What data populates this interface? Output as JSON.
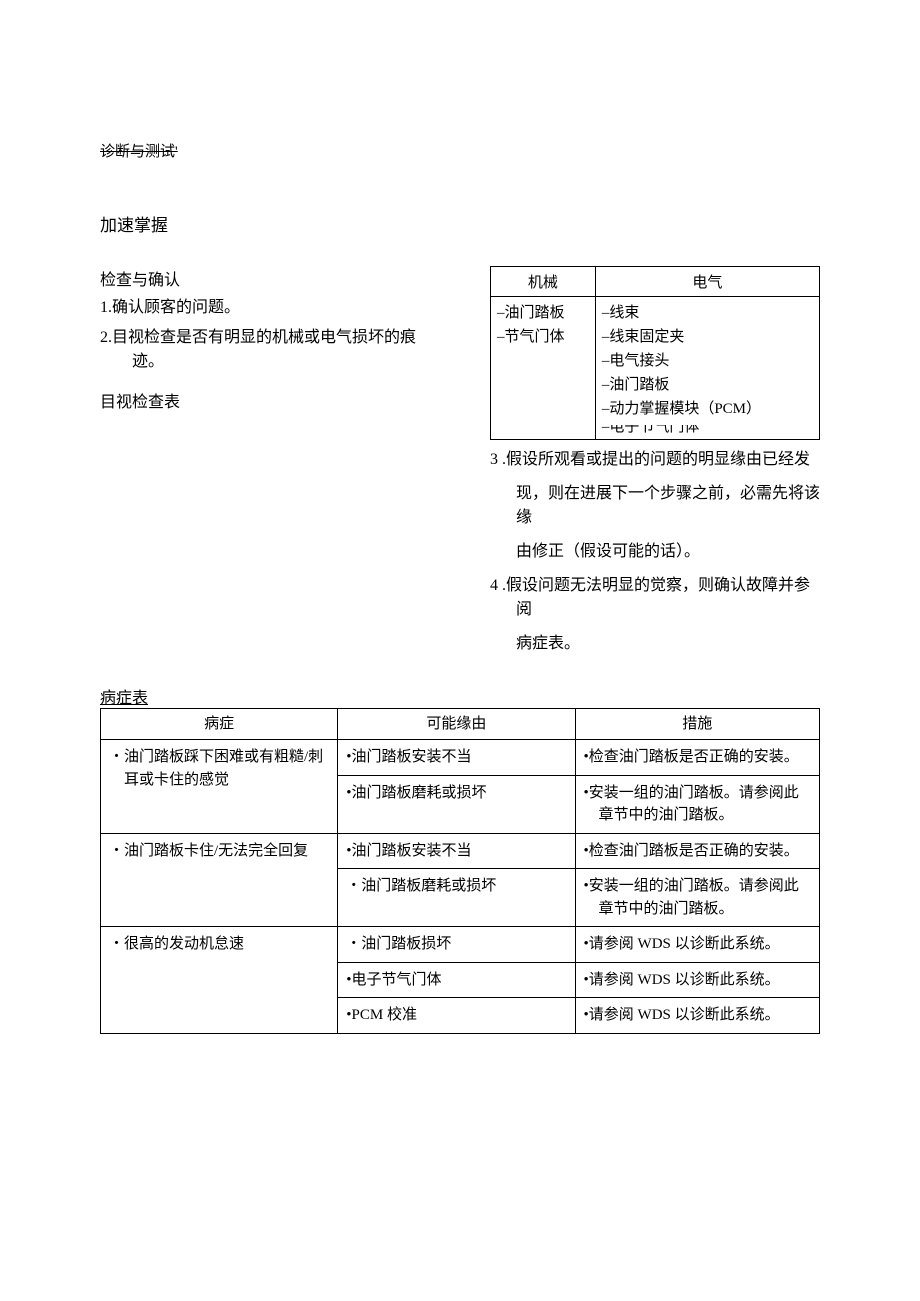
{
  "header": {
    "struck_text": "诊断与测试'"
  },
  "title": "加速掌握",
  "inspection": {
    "heading": "检查与确认",
    "item1": "1.确认顾客的问题。",
    "item2_line1": "2.目视检查是否有明显的机械或电气损坏的痕",
    "item2_line2": "迹。",
    "visual_label": "目视检查表"
  },
  "visual_table": {
    "col1_header": "机械",
    "col2_header": "电气",
    "col1_items": {
      "i1": "油门踏板",
      "i2": "节气门体"
    },
    "col2_items": {
      "i1": "线束",
      "i2": "线束固定夹",
      "i3": "电气接头",
      "i4": "油门踏板",
      "i5": "动力掌握模块（PCM）",
      "i6": "电子节气门体"
    }
  },
  "steps": {
    "s3_line1": "3 .假设所观看或提出的问题的明显缘由已经发",
    "s3_line2": "现，则在进展下一个步骤之前，必需先将该缘",
    "s3_line3": "由修正（假设可能的话）。",
    "s4_line1": "4 .假设问题无法明显的觉察，则确认故障并参阅",
    "s4_line2": "病症表。"
  },
  "symptom_table": {
    "label": "病症表",
    "headers": {
      "symptom": "病症",
      "cause": "可能缘由",
      "action": "措施"
    },
    "rows": {
      "r1": {
        "symptom_l1": "・油门踏板踩下困难或有粗糙/刺",
        "symptom_l2": "　耳或卡住的感觉",
        "cause": "•油门踏板安装不当",
        "action": "•检查油门踏板是否正确的安装。"
      },
      "r2": {
        "cause": "•油门踏板磨耗或损坏",
        "action_l1": "•安装一组的油门踏板。请参阅此",
        "action_l2": "　章节中的油门踏板。"
      },
      "r3": {
        "symptom": "・油门踏板卡住/无法完全回复",
        "cause": "•油门踏板安装不当",
        "action": "•检查油门踏板是否正确的安装。"
      },
      "r4": {
        "cause": "・油门踏板磨耗或损坏",
        "action_l1": "•安装一组的油门踏板。请参阅此",
        "action_l2": "　章节中的油门踏板。"
      },
      "r5": {
        "symptom": "・很高的发动机怠速",
        "cause": "・油门踏板损坏",
        "action": "•请参阅 WDS 以诊断此系统。"
      },
      "r6": {
        "cause": "•电子节气门体",
        "action": "•请参阅 WDS 以诊断此系统。"
      },
      "r7": {
        "cause": "•PCM 校准",
        "action": "•请参阅 WDS 以诊断此系统。"
      }
    }
  }
}
